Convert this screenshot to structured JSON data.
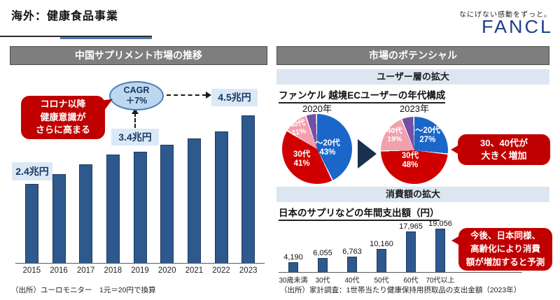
{
  "header": {
    "title": "海外：健康食品事業",
    "tagline": "なにげない感動をずっと。",
    "logo": "FANCL"
  },
  "left_panel": {
    "heading": "中国サプリメント市場の推移",
    "callout_lines": [
      "コロナ以降",
      "健康意識が",
      "さらに高まる"
    ],
    "cagr_lines": [
      "CAGR",
      "＋7%"
    ],
    "source": "（出所）ユーロモニター　1元＝20円で換算"
  },
  "right_panel": {
    "heading": "市場のポテンシャル",
    "sub_band_users": "ユーザー層の拡大",
    "ec_title": "ファンケル 越境ECユーザーの年代構成",
    "callout_growth_lines": [
      "30、40代が",
      "大きく増加"
    ],
    "sub_band_spend": "消費額の拡大",
    "jp_title": "日本のサプリなどの年間支出額（円）",
    "callout_forecast_lines": [
      "今後、日本同様、",
      "高齢化により消費",
      "額が増加すると予測"
    ],
    "source": "（出所）家計調査：1世帯当たり健康保持用摂取品の支出金額（2023年）"
  },
  "colors": {
    "bar_blue": "#2e598e",
    "accent_red": "#c00000",
    "navy_text": "#17375e",
    "header_gray": "#7e7e7e",
    "band_blue": "#dce6f1",
    "label_box_blue": "#dbe9f7",
    "pie_blue": "#1b67c9",
    "pie_red": "#d10000",
    "pie_pink": "#f2a0ae",
    "pie_purple": "#7350a5",
    "logo_navy": "#1d3f8f"
  },
  "chart_data": [
    {
      "type": "bar",
      "title": "中国サプリメント市場の推移",
      "categories": [
        "2015",
        "2016",
        "2017",
        "2018",
        "2019",
        "2020",
        "2021",
        "2022",
        "2023"
      ],
      "values": [
        2.4,
        2.7,
        3.0,
        3.3,
        3.4,
        3.6,
        3.8,
        4.0,
        4.5
      ],
      "unit": "兆円",
      "ylim": [
        0,
        4.5
      ],
      "bar_color": "#2e598e",
      "grid": false,
      "annotations": [
        {
          "x": "2015",
          "label": "2.4兆円"
        },
        {
          "x": "2019",
          "label": "3.4兆円"
        },
        {
          "x": "2023",
          "label": "4.5兆円"
        },
        {
          "label": "CAGR ＋7%"
        }
      ],
      "source": "ユーロモニター 1元＝20円で換算"
    },
    {
      "type": "pie",
      "title": "2020年",
      "slices": [
        {
          "label": "～20代",
          "value": 43,
          "color": "#1b67c9"
        },
        {
          "label": "30代",
          "value": 41,
          "color": "#d10000"
        },
        {
          "label": "40代",
          "value": 11,
          "color": "#f2a0ae"
        },
        {
          "label": "",
          "value": 5,
          "color": "#7350a5"
        }
      ]
    },
    {
      "type": "pie",
      "title": "2023年",
      "slices": [
        {
          "label": "～20代",
          "value": 27,
          "color": "#1b67c9"
        },
        {
          "label": "30代",
          "value": 48,
          "color": "#d10000"
        },
        {
          "label": "40代",
          "value": 19,
          "color": "#f2a0ae"
        },
        {
          "label": "",
          "value": 6,
          "color": "#7350a5"
        }
      ]
    },
    {
      "type": "bar",
      "title": "日本のサプリなどの年間支出額（円）",
      "categories": [
        "30歳未満",
        "30代",
        "40代",
        "50代",
        "60代",
        "70代以上"
      ],
      "values": [
        4190,
        6055,
        6763,
        10160,
        17965,
        19056
      ],
      "value_labels": [
        "4,190",
        "6,055",
        "6,763",
        "10,160",
        "17,965",
        "19,056"
      ],
      "unit": "円",
      "ylim": [
        0,
        19056
      ],
      "bar_color": "#2e598e",
      "grid": false,
      "source": "家計調査：1世帯当たり健康保持用摂取品の支出金額（2023年）"
    }
  ]
}
